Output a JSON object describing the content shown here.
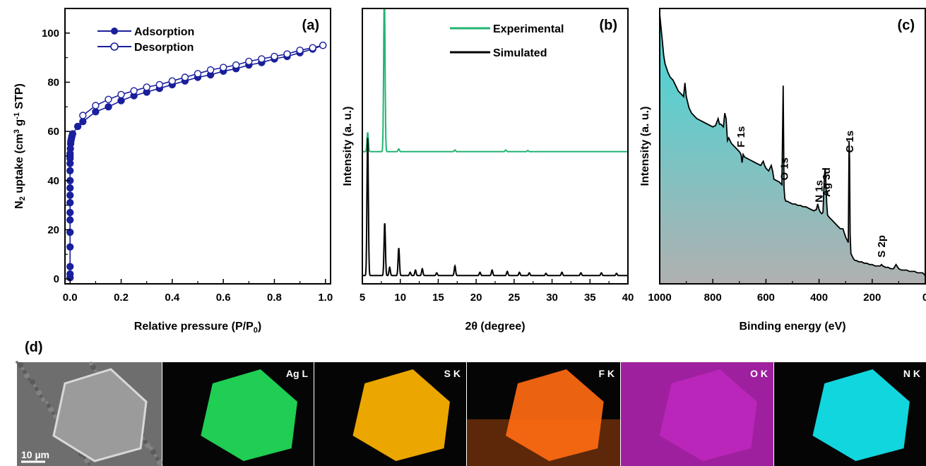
{
  "colors": {
    "adsorption": "#1a1f9c",
    "experimental": "#22b573",
    "simulated": "#000000",
    "xps_fill_top": "#3fd9d9",
    "xps_fill_bottom": "#b0b0b0",
    "ag": "#22e05a",
    "s": "#ffb400",
    "f": "#ff6a12",
    "o": "#d22ad2",
    "n": "#12e8f0"
  },
  "chart_data": [
    {
      "panel": "(a)",
      "type": "line",
      "xlabel": "Relative pressure (P/P0)",
      "xlabel_main": "Relative pressure (P/P",
      "xlabel_sub": "0",
      "xlabel_end": ")",
      "ylabel": "N2 uptake (cm3 g-1 STP)",
      "ylabel_parts": [
        "N",
        "2",
        " uptake (cm",
        "3",
        " g",
        "-1",
        " STP)"
      ],
      "xlim": [
        -0.02,
        1.02
      ],
      "ylim": [
        -2,
        110
      ],
      "xticks": [
        "0.0",
        "0.2",
        "0.4",
        "0.6",
        "0.8",
        "1.0"
      ],
      "yticks": [
        "0",
        "20",
        "40",
        "60",
        "80",
        "100"
      ],
      "legend_position": "top-left",
      "series": [
        {
          "name": "Adsorption",
          "marker": "filled-circle",
          "x": [
            0.0,
            0.0,
            0.0,
            0.0,
            0.0,
            0.0,
            0.0,
            0.0,
            0.0,
            0.0,
            0.0,
            0.0,
            0.0,
            0.0,
            0.0,
            0.0,
            0.001,
            0.002,
            0.003,
            0.005,
            0.007,
            0.01,
            0.03,
            0.05,
            0.1,
            0.15,
            0.2,
            0.25,
            0.3,
            0.35,
            0.4,
            0.45,
            0.5,
            0.55,
            0.6,
            0.65,
            0.7,
            0.75,
            0.8,
            0.85,
            0.9,
            0.95,
            0.99
          ],
          "y": [
            0.5,
            2,
            5,
            13,
            19,
            24,
            27,
            31,
            34,
            37,
            40,
            44,
            47,
            49,
            50,
            51,
            53,
            55,
            56,
            57,
            58,
            59,
            62,
            64,
            68,
            70,
            72.5,
            74.5,
            76,
            77.5,
            79,
            80.5,
            82,
            83,
            84.5,
            85.5,
            87,
            88,
            89.5,
            90.5,
            92,
            93.5,
            95
          ]
        },
        {
          "name": "Desorption",
          "marker": "open-circle",
          "x": [
            0.99,
            0.95,
            0.9,
            0.85,
            0.8,
            0.75,
            0.7,
            0.65,
            0.6,
            0.55,
            0.5,
            0.45,
            0.4,
            0.35,
            0.3,
            0.25,
            0.2,
            0.15,
            0.1,
            0.05
          ],
          "y": [
            95,
            94,
            93,
            91.5,
            90.5,
            89.5,
            88.5,
            87,
            86,
            85,
            83.5,
            82,
            80.5,
            79,
            78,
            76.5,
            75,
            73,
            70.5,
            66.5
          ]
        }
      ]
    },
    {
      "panel": "(b)",
      "type": "line",
      "xlabel": "2θ (degree)",
      "ylabel": "Intensity (a. u.)",
      "xlim": [
        5,
        40
      ],
      "xticks": [
        "5",
        "10",
        "15",
        "20",
        "25",
        "30",
        "35",
        "40"
      ],
      "legend_position": "top-right",
      "series": [
        {
          "name": "Experimental",
          "baseline": 0.48,
          "peaks": [
            [
              5.7,
              0.07
            ],
            [
              7.9,
              0.58
            ],
            [
              9.8,
              0.01
            ],
            [
              17.2,
              0.006
            ],
            [
              23.9,
              0.006
            ],
            [
              26.8,
              0.004
            ]
          ]
        },
        {
          "name": "Simulated",
          "baseline": 0.03,
          "peaks": [
            [
              5.7,
              0.5
            ],
            [
              7.95,
              0.19
            ],
            [
              8.6,
              0.03
            ],
            [
              9.8,
              0.1
            ],
            [
              11.3,
              0.012
            ],
            [
              12.0,
              0.02
            ],
            [
              12.9,
              0.025
            ],
            [
              14.8,
              0.01
            ],
            [
              17.2,
              0.035
            ],
            [
              20.5,
              0.012
            ],
            [
              22.1,
              0.02
            ],
            [
              24.1,
              0.015
            ],
            [
              25.7,
              0.012
            ],
            [
              27.0,
              0.01
            ],
            [
              29.2,
              0.008
            ],
            [
              31.3,
              0.012
            ],
            [
              33.8,
              0.01
            ],
            [
              36.5,
              0.01
            ],
            [
              38.5,
              0.008
            ]
          ]
        }
      ]
    },
    {
      "panel": "(c)",
      "type": "area",
      "xlabel": "Binding energy (eV)",
      "ylabel": "Intensity (a. u.)",
      "xlim": [
        1000,
        0
      ],
      "xticks": [
        "1000",
        "800",
        "600",
        "400",
        "200",
        "0"
      ],
      "x": [
        1000,
        995,
        990,
        985,
        980,
        970,
        960,
        950,
        940,
        930,
        920,
        910,
        905,
        900,
        890,
        880,
        870,
        860,
        850,
        840,
        830,
        820,
        810,
        800,
        790,
        780,
        775,
        770,
        760,
        755,
        750,
        745,
        740,
        735,
        730,
        720,
        710,
        700,
        694,
        690,
        686,
        680,
        670,
        660,
        650,
        640,
        630,
        620,
        610,
        605,
        600,
        590,
        580,
        575,
        570,
        560,
        550,
        540,
        535,
        532,
        529,
        525,
        520,
        510,
        500,
        490,
        480,
        470,
        460,
        450,
        440,
        430,
        420,
        410,
        405,
        400,
        395,
        390,
        385,
        380,
        377,
        374,
        371,
        368,
        365,
        360,
        355,
        350,
        345,
        340,
        330,
        320,
        310,
        300,
        295,
        290,
        287,
        285,
        283,
        280,
        275,
        270,
        265,
        260,
        250,
        240,
        230,
        220,
        210,
        200,
        190,
        180,
        170,
        165,
        160,
        150,
        140,
        130,
        120,
        110,
        100,
        90,
        80,
        70,
        60,
        50,
        40,
        30,
        20,
        10,
        0
      ],
      "y": [
        0.98,
        0.93,
        0.88,
        0.83,
        0.8,
        0.77,
        0.75,
        0.74,
        0.72,
        0.7,
        0.69,
        0.68,
        0.73,
        0.68,
        0.64,
        0.62,
        0.61,
        0.6,
        0.595,
        0.59,
        0.585,
        0.58,
        0.575,
        0.57,
        0.575,
        0.6,
        0.58,
        0.58,
        0.57,
        0.62,
        0.6,
        0.52,
        0.53,
        0.52,
        0.51,
        0.5,
        0.49,
        0.48,
        0.47,
        0.44,
        0.47,
        0.46,
        0.455,
        0.45,
        0.445,
        0.44,
        0.435,
        0.43,
        0.445,
        0.43,
        0.42,
        0.41,
        0.43,
        0.41,
        0.38,
        0.375,
        0.37,
        0.36,
        0.72,
        0.35,
        0.31,
        0.3,
        0.3,
        0.295,
        0.29,
        0.29,
        0.285,
        0.285,
        0.28,
        0.28,
        0.275,
        0.27,
        0.265,
        0.27,
        0.29,
        0.27,
        0.26,
        0.255,
        0.26,
        0.39,
        0.42,
        0.36,
        0.29,
        0.25,
        0.245,
        0.24,
        0.235,
        0.23,
        0.225,
        0.22,
        0.21,
        0.2,
        0.2,
        0.17,
        0.16,
        0.15,
        0.52,
        0.45,
        0.18,
        0.11,
        0.1,
        0.09,
        0.085,
        0.085,
        0.08,
        0.08,
        0.075,
        0.075,
        0.07,
        0.07,
        0.065,
        0.065,
        0.065,
        0.07,
        0.065,
        0.06,
        0.06,
        0.055,
        0.055,
        0.07,
        0.055,
        0.05,
        0.05,
        0.05,
        0.045,
        0.045,
        0.045,
        0.04,
        0.04,
        0.04,
        0.03
      ],
      "peak_labels": [
        {
          "text": "F 1s",
          "x": 694
        },
        {
          "text": "O 1s",
          "x": 531
        },
        {
          "text": "N 1s",
          "x": 400
        },
        {
          "text": "Ag 3d",
          "x": 372
        },
        {
          "text": "C 1s",
          "x": 285
        },
        {
          "text": "S 2p",
          "x": 165
        }
      ]
    }
  ],
  "panel_labels": [
    "(a)",
    "(b)",
    "(c)",
    "(d)"
  ],
  "eds_maps": [
    {
      "label": "",
      "kind": "sem",
      "scale_bar": "10 µm"
    },
    {
      "label": "Ag L",
      "kind": "map",
      "color_key": "ag"
    },
    {
      "label": "S K",
      "kind": "map",
      "color_key": "s"
    },
    {
      "label": "F K",
      "kind": "map",
      "color_key": "f"
    },
    {
      "label": "O K",
      "kind": "map",
      "color_key": "o"
    },
    {
      "label": "N K",
      "kind": "map",
      "color_key": "n"
    }
  ]
}
